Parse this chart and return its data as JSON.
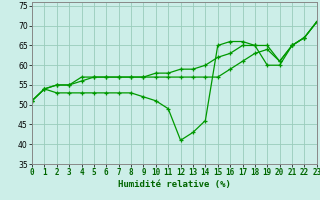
{
  "xlabel": "Humidité relative (%)",
  "background_color": "#cceee8",
  "line_color": "#009900",
  "grid_color": "#99ccbb",
  "xlim_min": 0,
  "xlim_max": 23,
  "ylim_min": 35,
  "ylim_max": 76,
  "yticks": [
    35,
    40,
    45,
    50,
    55,
    60,
    65,
    70,
    75
  ],
  "xticks": [
    0,
    1,
    2,
    3,
    4,
    5,
    6,
    7,
    8,
    9,
    10,
    11,
    12,
    13,
    14,
    15,
    16,
    17,
    18,
    19,
    20,
    21,
    22,
    23
  ],
  "s1": [
    51,
    54,
    55,
    55,
    56,
    57,
    57,
    57,
    57,
    57,
    58,
    58,
    59,
    59,
    60,
    62,
    63,
    65,
    65,
    65,
    61,
    65,
    67,
    71
  ],
  "s2": [
    51,
    54,
    53,
    53,
    53,
    53,
    53,
    53,
    53,
    52,
    51,
    49,
    41,
    43,
    46,
    65,
    66,
    66,
    65,
    60,
    60,
    65,
    67,
    71
  ],
  "s3": [
    51,
    54,
    55,
    55,
    57,
    57,
    57,
    57,
    57,
    57,
    57,
    57,
    57,
    57,
    57,
    57,
    59,
    61,
    63,
    64,
    61,
    65,
    67,
    71
  ],
  "xtick_fontsize": 5.5,
  "ytick_fontsize": 5.5,
  "xlabel_fontsize": 6.5,
  "linewidth": 0.9,
  "markersize": 3.0
}
